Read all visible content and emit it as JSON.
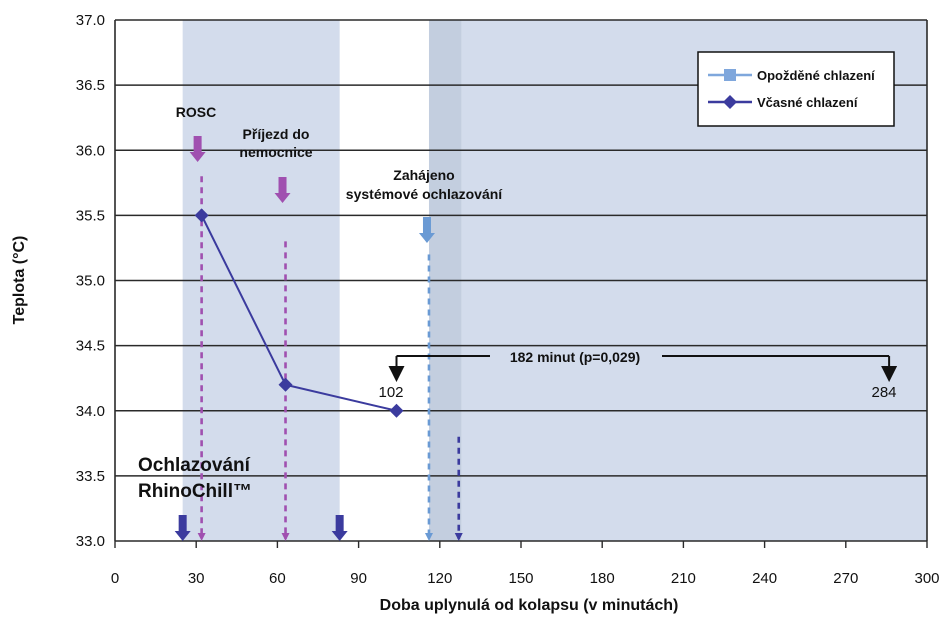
{
  "chart_data": {
    "type": "line",
    "title": "",
    "xlabel": "Doba uplynulá od kolapsu (v minutách)",
    "ylabel": "Teplota (°C)",
    "xlim": [
      0,
      300
    ],
    "ylim": [
      33.0,
      37.0
    ],
    "x_ticks": [
      0,
      30,
      60,
      90,
      120,
      150,
      180,
      210,
      240,
      270,
      300
    ],
    "y_ticks": [
      33.0,
      33.5,
      34.0,
      34.5,
      35.0,
      35.5,
      36.0,
      36.5,
      37.0
    ],
    "x_tick_labels": [
      "0",
      "30",
      "60",
      "90",
      "120",
      "150",
      "180",
      "210",
      "240",
      "270",
      "300"
    ],
    "y_tick_labels": [
      "33.0",
      "33.5",
      "34.0",
      "34.5",
      "35.0",
      "35.5",
      "36.0",
      "36.5",
      "37.0"
    ],
    "grid": "horizontal",
    "legend_position": "top-right",
    "series": [
      {
        "name": "Opožděné chlazení",
        "color": "#7fa7dc",
        "marker": "square",
        "x": [],
        "y": []
      },
      {
        "name": "Včasné chlazení",
        "color": "#3b3b9e",
        "marker": "diamond",
        "x": [
          32,
          63,
          104
        ],
        "y": [
          35.5,
          34.2,
          34.0
        ]
      }
    ],
    "shaded_regions": [
      {
        "x_start": 25,
        "x_end": 83,
        "color": "#d3dcec"
      },
      {
        "x_start": 116,
        "x_end": 128,
        "color": "#c3cedf"
      },
      {
        "x_start": 128,
        "x_end": 300,
        "color": "#d3dcec"
      }
    ],
    "events": [
      {
        "label": "ROSC",
        "x": 32,
        "color": "#a050b0",
        "line_top_y": 35.8
      },
      {
        "label_lines": [
          "Příjezd do",
          "nemocnice"
        ],
        "x": 63,
        "color": "#a050b0",
        "line_top_y": 35.3
      },
      {
        "label_lines": [
          "Zahájeno",
          "systémové ochlazování"
        ],
        "x": 116,
        "color": "#6a9ad4",
        "line_top_y": 35.2
      },
      {
        "label": "",
        "x": 127,
        "color": "#3b3b9e",
        "line_top_y": 33.8
      }
    ],
    "cooling_markers": {
      "label_lines": [
        "Ochlazování",
        "RhinoChill™"
      ],
      "x": [
        25,
        83
      ],
      "color": "#3b3b9e"
    },
    "interval_annotation": {
      "label": "182 minut (p=0,029)",
      "start_x": 104,
      "end_x": 286,
      "y": 34.42,
      "start_value_label": "102",
      "end_value_label": "284"
    }
  }
}
